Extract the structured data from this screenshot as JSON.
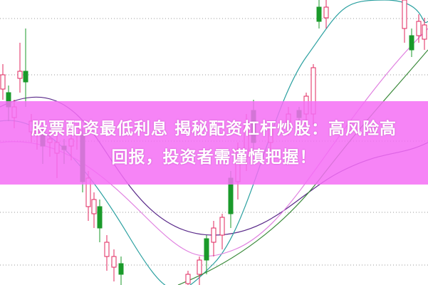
{
  "headline": {
    "line1": "股票配资最低利息 揭秘配资杠杆炒股：高风险高",
    "line2": "回报，投资者需谨慎把握！"
  },
  "colors": {
    "up": "#e0245e",
    "down": "#1a9a2a",
    "banner": "#f56ef5",
    "ma_purple": "#5a2a8a",
    "ma_teal": "#2aa0a0",
    "ma_pink": "#e080e0",
    "ma_green": "#3a8a3a"
  }
}
